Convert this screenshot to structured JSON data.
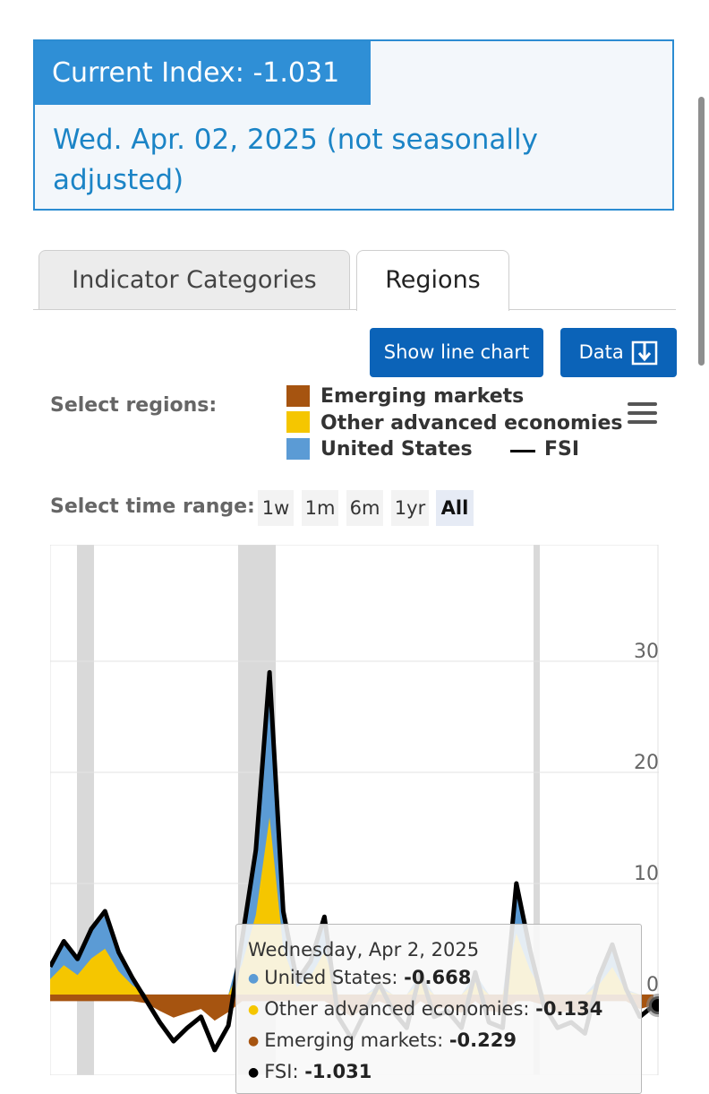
{
  "index": {
    "label": "Current Index: -1.031",
    "date": "Wed. Apr. 02, 2025 (not seasonally adjusted)"
  },
  "tabs": [
    {
      "label": "Indicator Categories",
      "active": false
    },
    {
      "label": "Regions",
      "active": true
    }
  ],
  "buttons": {
    "line_chart": "Show line chart",
    "data": "Data"
  },
  "regions": {
    "label": "Select regions:",
    "items": [
      {
        "label": "Emerging markets",
        "color": "#a65410"
      },
      {
        "label": "Other advanced economies",
        "color": "#f5c600"
      },
      {
        "label": "United States",
        "color": "#5b9bd5"
      },
      {
        "label": "FSI",
        "color": "#000000"
      }
    ]
  },
  "time_range": {
    "label": "Select time range:",
    "options": [
      "1w",
      "1m",
      "6m",
      "1yr",
      "All"
    ],
    "selected": "All"
  },
  "chart_data": {
    "type": "area",
    "y_ticks": [
      "30",
      "20",
      "10",
      "0"
    ],
    "ylim": [
      -6,
      40
    ],
    "grid": true,
    "series": [
      {
        "name": "United States",
        "color": "#5b9bd5"
      },
      {
        "name": "Other advanced economies",
        "color": "#f5c600"
      },
      {
        "name": "Emerging markets",
        "color": "#a65410"
      },
      {
        "name": "FSI",
        "color": "#000000",
        "values": [
          2.5,
          4.8,
          3.2,
          5.9,
          7.5,
          3.8,
          1.5,
          -0.5,
          -2.5,
          -4.2,
          -3.0,
          -2.0,
          -5.0,
          -2.8,
          5.0,
          13.0,
          29.0,
          7.5,
          1.2,
          3.0,
          7.0,
          -2.0,
          -4.0,
          -1.5,
          1.0,
          -1.5,
          -3.0,
          2.0,
          -2.0,
          -1.5,
          -3.0,
          2.0,
          -2.5,
          -3.0,
          10.0,
          4.0,
          -1.0,
          -3.0,
          -2.5,
          -3.5,
          1.5,
          4.5,
          0.5,
          -2.0,
          -1.0
        ]
      }
    ],
    "tooltip": {
      "title": "Wednesday, Apr 2, 2025",
      "rows": [
        {
          "label": "United States: ",
          "value": "-0.668",
          "color": "#5b9bd5"
        },
        {
          "label": "Other advanced economies: ",
          "value": "-0.134",
          "color": "#f5c600"
        },
        {
          "label": "Emerging markets: ",
          "value": "-0.229",
          "color": "#a65410"
        },
        {
          "label": "FSI: ",
          "value": "-1.031",
          "color": "#000000"
        }
      ]
    }
  }
}
